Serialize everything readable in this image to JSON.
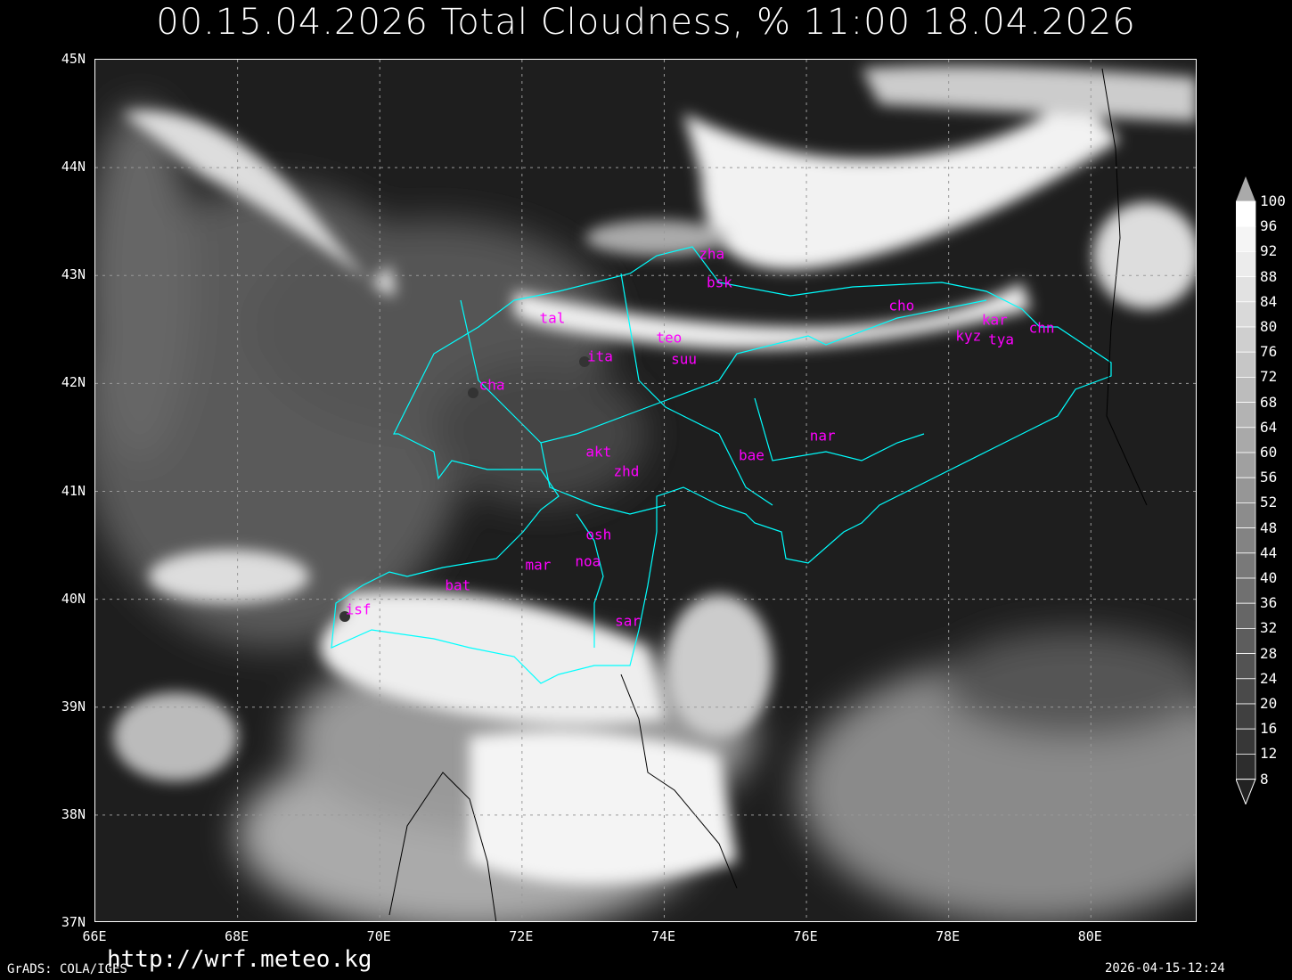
{
  "title": "00.15.04.2026 Total Cloudness, % 11:00 18.04.2026",
  "map": {
    "lon_range": [
      66,
      81.5
    ],
    "lat_range": [
      37,
      45
    ],
    "lat_labels": [
      "45N",
      "44N",
      "43N",
      "42N",
      "41N",
      "40N",
      "39N",
      "38N",
      "37N"
    ],
    "lon_labels": [
      "66E",
      "68E",
      "70E",
      "72E",
      "74E",
      "76E",
      "78E",
      "80E"
    ],
    "grid": "dotted",
    "border_color": "#00ffff",
    "label_color": "#ff00ff",
    "stations": [
      {
        "name": "zha",
        "lon": 74.68,
        "lat": 43.19
      },
      {
        "name": "bsk",
        "lon": 74.79,
        "lat": 42.93
      },
      {
        "name": "tal",
        "lon": 72.44,
        "lat": 42.6
      },
      {
        "name": "cho",
        "lon": 77.35,
        "lat": 42.71
      },
      {
        "name": "kar",
        "lon": 78.66,
        "lat": 42.58
      },
      {
        "name": "chn",
        "lon": 79.32,
        "lat": 42.51
      },
      {
        "name": "kyz",
        "lon": 78.29,
        "lat": 42.43
      },
      {
        "name": "tya",
        "lon": 78.75,
        "lat": 42.4
      },
      {
        "name": "teo",
        "lon": 74.08,
        "lat": 42.42
      },
      {
        "name": "ita",
        "lon": 73.11,
        "lat": 42.24
      },
      {
        "name": "suu",
        "lon": 74.29,
        "lat": 42.22
      },
      {
        "name": "cha",
        "lon": 71.59,
        "lat": 41.98
      },
      {
        "name": "nar",
        "lon": 76.24,
        "lat": 41.51
      },
      {
        "name": "bae",
        "lon": 75.24,
        "lat": 41.33
      },
      {
        "name": "akt",
        "lon": 73.09,
        "lat": 41.36
      },
      {
        "name": "zhd",
        "lon": 73.48,
        "lat": 41.18
      },
      {
        "name": "osh",
        "lon": 73.09,
        "lat": 40.59
      },
      {
        "name": "mar",
        "lon": 72.24,
        "lat": 40.31
      },
      {
        "name": "noa",
        "lon": 72.94,
        "lat": 40.34
      },
      {
        "name": "bat",
        "lon": 71.11,
        "lat": 40.12
      },
      {
        "name": "isf",
        "lon": 69.71,
        "lat": 39.9
      },
      {
        "name": "sar",
        "lon": 73.5,
        "lat": 39.79
      }
    ]
  },
  "colorbar": {
    "levels": [
      "100",
      "96",
      "92",
      "88",
      "84",
      "80",
      "76",
      "72",
      "68",
      "64",
      "60",
      "56",
      "52",
      "48",
      "44",
      "40",
      "36",
      "32",
      "28",
      "24",
      "20",
      "16",
      "12",
      "8"
    ]
  },
  "footer": {
    "left": "GrADS: COLA/IGES",
    "url": "http://wrf.meteo.kg",
    "timestamp": "2026-04-15-12:24"
  }
}
